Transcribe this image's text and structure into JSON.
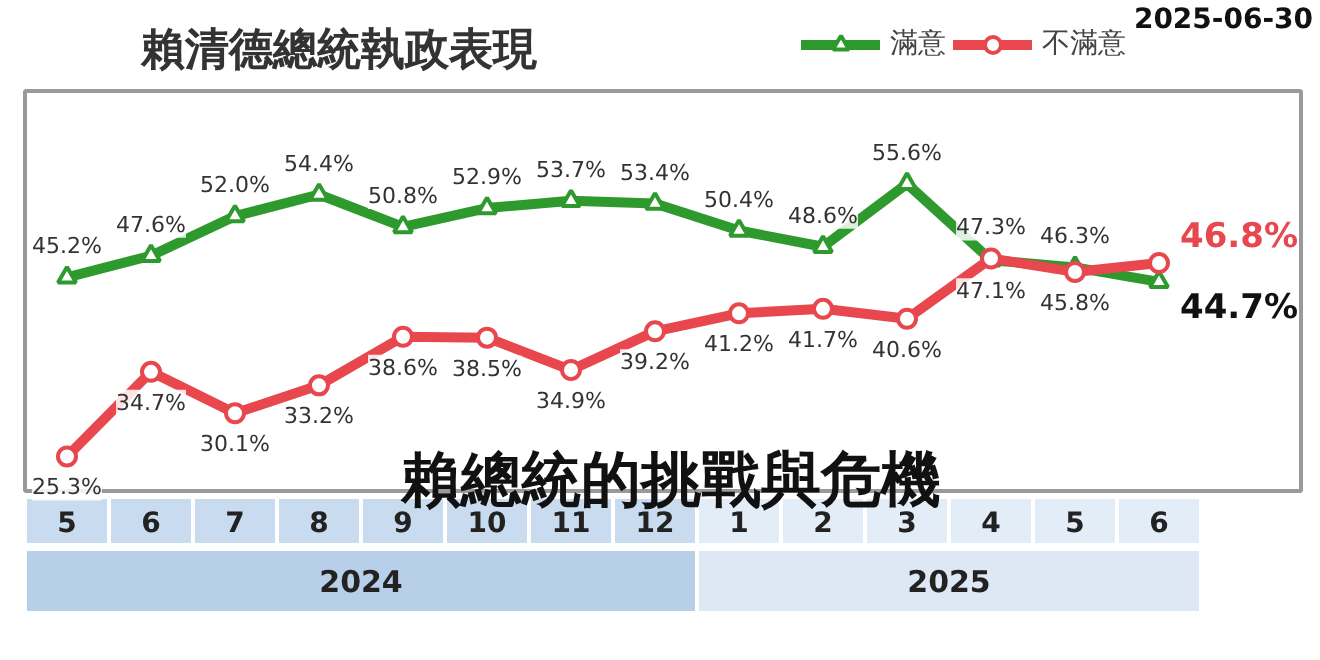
{
  "chart_data": {
    "type": "line",
    "title": "賴清德總統執政表現",
    "categories": [
      "5",
      "6",
      "7",
      "8",
      "9",
      "10",
      "11",
      "12",
      "1",
      "2",
      "3",
      "4",
      "5",
      "6"
    ],
    "series": [
      {
        "name": "滿意",
        "color": "#2e9a2e",
        "marker": "triangle",
        "values": [
          45.2,
          47.6,
          52.0,
          54.4,
          50.8,
          52.9,
          53.7,
          53.4,
          50.4,
          48.6,
          55.6,
          47.1,
          46.3,
          44.7
        ],
        "value_labels": [
          "45.2%",
          "47.6%",
          "52.0%",
          "54.4%",
          "50.8%",
          "52.9%",
          "53.7%",
          "53.4%",
          "50.4%",
          "48.6%",
          "55.6%",
          "47.1%",
          "46.3%",
          "44.7%"
        ]
      },
      {
        "name": "不滿意",
        "color": "#e8474e",
        "marker": "circle",
        "values": [
          25.3,
          34.7,
          30.1,
          33.2,
          38.6,
          38.5,
          34.9,
          39.2,
          41.2,
          41.7,
          40.6,
          47.3,
          45.8,
          46.8
        ],
        "value_labels": [
          "25.3%",
          "34.7%",
          "30.1%",
          "33.2%",
          "38.6%",
          "38.5%",
          "34.9%",
          "39.2%",
          "41.2%",
          "41.7%",
          "40.6%",
          "47.3%",
          "45.8%",
          "46.8%"
        ]
      }
    ],
    "legend": "top right",
    "grid": false,
    "line_style": "solid",
    "annotations": [
      "2025-06-30",
      "賴總統的挑戰與危機",
      "2024",
      "2025"
    ]
  }
}
